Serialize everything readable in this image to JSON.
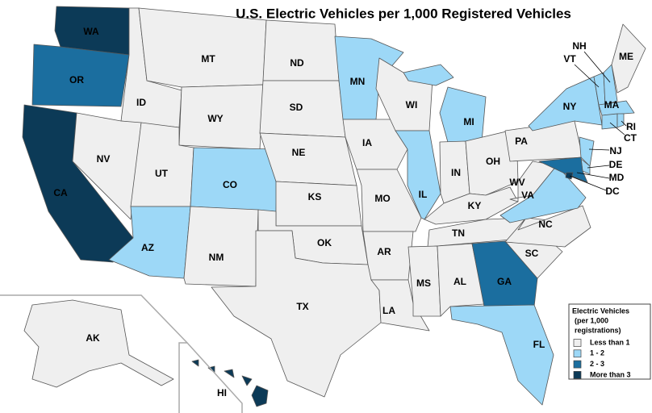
{
  "title": "U.S. Electric Vehicles per 1,000 Registered Vehicles",
  "legend": {
    "title": [
      "Electric Vehicles",
      "(per 1,000",
      "registrations)"
    ],
    "items": [
      {
        "label": "Less than 1",
        "color": "#efefef"
      },
      {
        "label": "1 - 2",
        "color": "#9dd8f7"
      },
      {
        "label": "2 - 3",
        "color": "#1b6e9f"
      },
      {
        "label": "More than 3",
        "color": "#0c3a57"
      }
    ]
  },
  "states": [
    {
      "label": "WA",
      "color": "#0c3a57"
    },
    {
      "label": "OR",
      "color": "#1b6e9f"
    },
    {
      "label": "CA",
      "color": "#0c3a57"
    },
    {
      "label": "ID",
      "color": "#efefef"
    },
    {
      "label": "NV",
      "color": "#efefef"
    },
    {
      "label": "MT",
      "color": "#efefef"
    },
    {
      "label": "WY",
      "color": "#efefef"
    },
    {
      "label": "UT",
      "color": "#efefef"
    },
    {
      "label": "CO",
      "color": "#9dd8f7"
    },
    {
      "label": "AZ",
      "color": "#9dd8f7"
    },
    {
      "label": "NM",
      "color": "#efefef"
    },
    {
      "label": "ND",
      "color": "#efefef"
    },
    {
      "label": "SD",
      "color": "#efefef"
    },
    {
      "label": "NE",
      "color": "#efefef"
    },
    {
      "label": "KS",
      "color": "#efefef"
    },
    {
      "label": "OK",
      "color": "#efefef"
    },
    {
      "label": "TX",
      "color": "#efefef"
    },
    {
      "label": "MN",
      "color": "#9dd8f7"
    },
    {
      "label": "IA",
      "color": "#efefef"
    },
    {
      "label": "MO",
      "color": "#efefef"
    },
    {
      "label": "AR",
      "color": "#efefef"
    },
    {
      "label": "LA",
      "color": "#efefef"
    },
    {
      "label": "WI",
      "color": "#efefef"
    },
    {
      "label": "IL",
      "color": "#9dd8f7"
    },
    {
      "label": "MI",
      "color": "#9dd8f7"
    },
    {
      "label": "IN",
      "color": "#efefef"
    },
    {
      "label": "OH",
      "color": "#efefef"
    },
    {
      "label": "KY",
      "color": "#efefef"
    },
    {
      "label": "TN",
      "color": "#efefef"
    },
    {
      "label": "MS",
      "color": "#efefef"
    },
    {
      "label": "AL",
      "color": "#efefef"
    },
    {
      "label": "GA",
      "color": "#1b6e9f"
    },
    {
      "label": "FL",
      "color": "#9dd8f7"
    },
    {
      "label": "SC",
      "color": "#efefef"
    },
    {
      "label": "NC",
      "color": "#efefef"
    },
    {
      "label": "VA",
      "color": "#9dd8f7"
    },
    {
      "label": "WV",
      "color": "#efefef"
    },
    {
      "label": "PA",
      "color": "#efefef"
    },
    {
      "label": "NY",
      "color": "#9dd8f7"
    },
    {
      "label": "VT",
      "color": "#9dd8f7"
    },
    {
      "label": "NH",
      "color": "#9dd8f7"
    },
    {
      "label": "ME",
      "color": "#efefef"
    },
    {
      "label": "MA",
      "color": "#9dd8f7"
    },
    {
      "label": "CT",
      "color": "#9dd8f7"
    },
    {
      "label": "RI",
      "color": "#9dd8f7"
    },
    {
      "label": "NJ",
      "color": "#9dd8f7"
    },
    {
      "label": "DE",
      "color": "#9dd8f7"
    },
    {
      "label": "MD",
      "color": "#1b6e9f"
    },
    {
      "label": "DC",
      "color": "#0c3a57"
    },
    {
      "label": "AK",
      "color": "#efefef"
    },
    {
      "label": "HI",
      "color": "#0c3a57"
    }
  ]
}
